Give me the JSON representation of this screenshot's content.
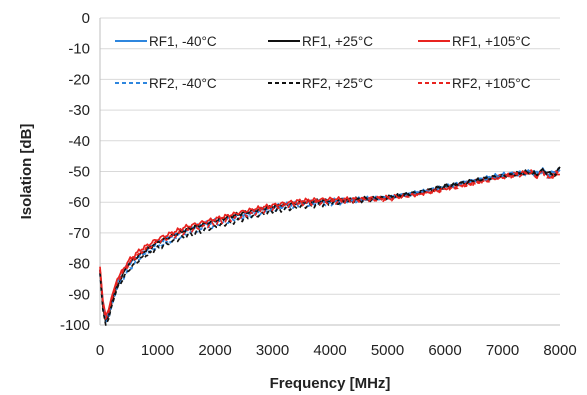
{
  "chart_data": {
    "type": "line",
    "title": "",
    "xlabel": "Frequency [MHz]",
    "ylabel": "Isolation [dB]",
    "xlim": [
      0,
      8000
    ],
    "ylim": [
      -100,
      0
    ],
    "x_ticks": [
      "0",
      "1000",
      "2000",
      "3000",
      "4000",
      "5000",
      "6000",
      "7000",
      "8000"
    ],
    "y_ticks": [
      "0",
      "-10",
      "-20",
      "-30",
      "-40",
      "-50",
      "-60",
      "-70",
      "-80",
      "-90",
      "-100"
    ],
    "grid": "horizontal",
    "legend": "top",
    "x": [
      0,
      50,
      100,
      150,
      200,
      300,
      500,
      700,
      1000,
      1500,
      2000,
      2500,
      3000,
      3500,
      4000,
      4500,
      5000,
      5500,
      6000,
      6500,
      7000,
      7500,
      7600,
      7700,
      7800,
      7900,
      8000
    ],
    "series": [
      {
        "name": "RF1, -40°C",
        "color": "#2e86de",
        "dash": "solid",
        "values": [
          -82,
          -93,
          -98,
          -96,
          -92,
          -86,
          -80,
          -77,
          -73,
          -69,
          -66,
          -64,
          -61.5,
          -60,
          -59.5,
          -59,
          -58.5,
          -57,
          -55,
          -53,
          -51,
          -50,
          -50.5,
          -49.5,
          -51,
          -50,
          -49
        ]
      },
      {
        "name": "RF1, +25°C",
        "color": "#111111",
        "dash": "solid",
        "values": [
          -82,
          -94,
          -99,
          -97,
          -93,
          -87,
          -80,
          -77,
          -73,
          -69,
          -66,
          -63.5,
          -61.5,
          -60,
          -59.5,
          -59,
          -58.5,
          -57,
          -55,
          -53,
          -51.5,
          -50,
          -51,
          -49.5,
          -50.5,
          -51,
          -49
        ]
      },
      {
        "name": "RF1, +105°C",
        "color": "#e8231f",
        "dash": "solid",
        "values": [
          -81,
          -92,
          -97,
          -95,
          -91,
          -85,
          -79,
          -75.5,
          -72,
          -68,
          -65.5,
          -63,
          -61,
          -59.5,
          -59,
          -59,
          -58.5,
          -57.5,
          -55.5,
          -53.5,
          -51.5,
          -50,
          -52,
          -49.5,
          -52,
          -50.5,
          -51
        ]
      },
      {
        "name": "RF2, -40°C",
        "color": "#2e86de",
        "dash": "dashed",
        "values": [
          -83,
          -94,
          -99,
          -98,
          -94,
          -88,
          -82,
          -78,
          -74.5,
          -70.5,
          -67.5,
          -65,
          -62.5,
          -61,
          -60.5,
          -59.5,
          -58.5,
          -57,
          -55,
          -53,
          -51.5,
          -50.5,
          -51,
          -50,
          -51.5,
          -50.5,
          -49.5
        ]
      },
      {
        "name": "RF2, +25°C",
        "color": "#111111",
        "dash": "dashed",
        "values": [
          -83,
          -95,
          -100,
          -98,
          -94,
          -88,
          -82,
          -78.5,
          -75,
          -71,
          -68,
          -65.5,
          -63,
          -61.5,
          -60.5,
          -59.5,
          -58.5,
          -57,
          -55,
          -53,
          -51.5,
          -50.5,
          -51,
          -49.5,
          -51,
          -51.5,
          -48.5
        ]
      },
      {
        "name": "RF2, +105°C",
        "color": "#e8231f",
        "dash": "dashed",
        "values": [
          -82,
          -93,
          -98,
          -96,
          -92,
          -86,
          -80,
          -76.5,
          -73,
          -69.5,
          -67,
          -64.5,
          -62,
          -60.5,
          -60,
          -59.5,
          -59,
          -57.5,
          -56,
          -54,
          -52,
          -50.5,
          -51.5,
          -50,
          -52.5,
          -51,
          -50.5
        ]
      }
    ]
  }
}
